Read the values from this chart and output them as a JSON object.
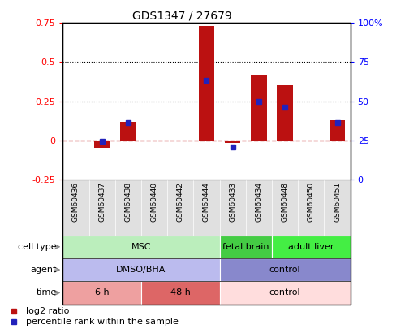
{
  "title": "GDS1347 / 27679",
  "samples": [
    "GSM60436",
    "GSM60437",
    "GSM60438",
    "GSM60440",
    "GSM60442",
    "GSM60444",
    "GSM60433",
    "GSM60434",
    "GSM60448",
    "GSM60450",
    "GSM60451"
  ],
  "log2_ratio": [
    0.0,
    -0.05,
    0.12,
    0.0,
    0.0,
    0.73,
    -0.02,
    0.42,
    0.35,
    0.0,
    0.13
  ],
  "percentile_rank": [
    null,
    24.5,
    36.5,
    null,
    null,
    63.5,
    20.5,
    49.5,
    46.0,
    null,
    36.5
  ],
  "ylim_left": [
    -0.25,
    0.75
  ],
  "ylim_right": [
    0,
    100
  ],
  "yticks_left": [
    -0.25,
    0.0,
    0.25,
    0.5,
    0.75
  ],
  "yticks_right": [
    0,
    25,
    50,
    75,
    100
  ],
  "ytick_labels_left": [
    "-0.25",
    "0",
    "0.25",
    "0.5",
    "0.75"
  ],
  "ytick_labels_right": [
    "0",
    "25",
    "50",
    "75",
    "100%"
  ],
  "hlines": [
    0.25,
    0.5
  ],
  "bar_color": "#BB1111",
  "dot_color": "#2222BB",
  "zero_line_color": "#CC4444",
  "cell_type_groups": [
    {
      "label": "MSC",
      "start": 0,
      "end": 5,
      "color": "#BBEEBC"
    },
    {
      "label": "fetal brain",
      "start": 6,
      "end": 7,
      "color": "#44CC44"
    },
    {
      "label": "adult liver",
      "start": 8,
      "end": 10,
      "color": "#44EE44"
    }
  ],
  "agent_groups": [
    {
      "label": "DMSO/BHA",
      "start": 0,
      "end": 5,
      "color": "#BBBBEE"
    },
    {
      "label": "control",
      "start": 6,
      "end": 10,
      "color": "#8888CC"
    }
  ],
  "time_groups": [
    {
      "label": "6 h",
      "start": 0,
      "end": 2,
      "color": "#EEA0A0"
    },
    {
      "label": "48 h",
      "start": 3,
      "end": 5,
      "color": "#DD6666"
    },
    {
      "label": "control",
      "start": 6,
      "end": 10,
      "color": "#FFDDDD"
    }
  ],
  "legend_items": [
    {
      "label": "log2 ratio",
      "color": "#BB1111"
    },
    {
      "label": "percentile rank within the sample",
      "color": "#2222BB"
    }
  ],
  "row_labels": [
    "cell type",
    "agent",
    "time"
  ]
}
